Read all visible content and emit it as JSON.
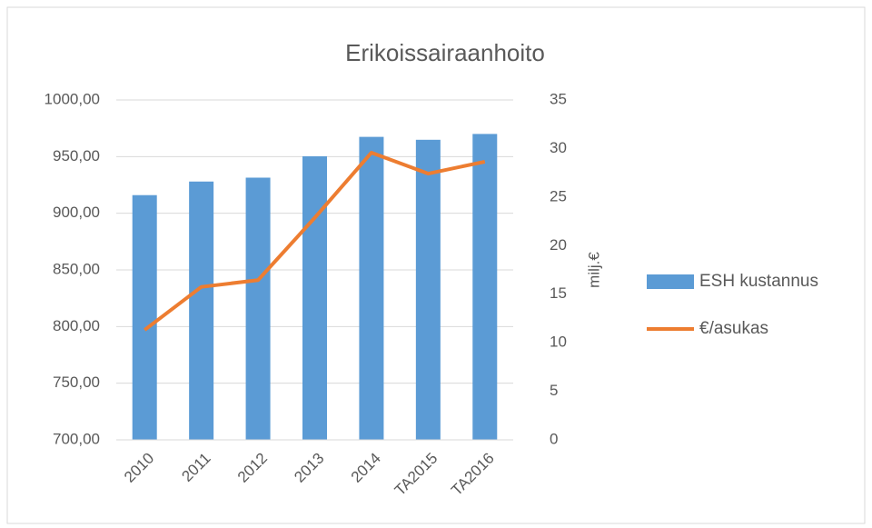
{
  "chart_data": {
    "type": "bar-line",
    "title": "Erikoissairaanhoito",
    "y2label": "milj.€",
    "categories": [
      "2010",
      "2011",
      "2012",
      "2013",
      "2014",
      "TA2015",
      "TA2016"
    ],
    "series": [
      {
        "name": "ESH kustannus",
        "type": "bar",
        "axis": "y2",
        "color": "#5b9bd5",
        "values": [
          25.2,
          26.6,
          27.0,
          29.2,
          31.2,
          30.9,
          31.5
        ]
      },
      {
        "name": "€/asukas",
        "type": "line",
        "color": "#ed7d31",
        "values": [
          797,
          835,
          841,
          896,
          953.5,
          935,
          945.5
        ]
      }
    ],
    "ylim": [
      700,
      1000
    ],
    "yticks": [
      {
        "value": 700,
        "label": "700,00"
      },
      {
        "value": 750,
        "label": "750,00"
      },
      {
        "value": 800,
        "label": "800,00"
      },
      {
        "value": 850,
        "label": "850,00"
      },
      {
        "value": 900,
        "label": "900,00"
      },
      {
        "value": 950,
        "label": "950,00"
      },
      {
        "value": 1000,
        "label": "1000,00"
      }
    ],
    "y2lim": [
      0,
      35
    ],
    "y2ticks": [
      0,
      5,
      10,
      15,
      20,
      25,
      30,
      35
    ],
    "grid": true,
    "legend": "right"
  }
}
